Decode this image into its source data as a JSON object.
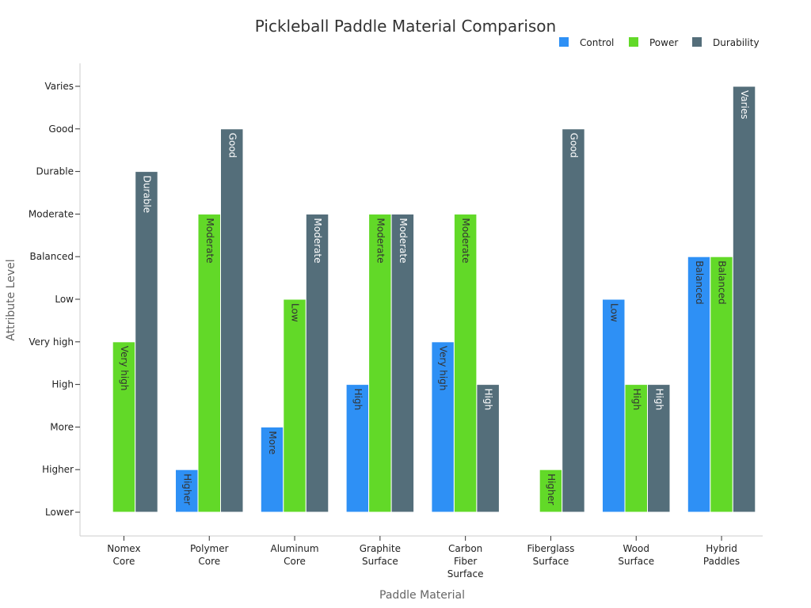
{
  "chart_data": {
    "type": "bar",
    "title": "Pickleball Paddle Material Comparison",
    "xlabel": "Paddle Material",
    "ylabel": "Attribute Level",
    "legend_position": "top-right",
    "grid": false,
    "y_categories": [
      "Lower",
      "Higher",
      "More",
      "High",
      "Very high",
      "Low",
      "Balanced",
      "Moderate",
      "Durable",
      "Good",
      "Varies"
    ],
    "categories": [
      [
        "Nomex",
        "Core"
      ],
      [
        "Polymer",
        "Core"
      ],
      [
        "Aluminum",
        "Core"
      ],
      [
        "Graphite",
        "Surface"
      ],
      [
        "Carbon",
        "Fiber",
        "Surface"
      ],
      [
        "Fiberglass",
        "Surface"
      ],
      [
        "Wood",
        "Surface"
      ],
      [
        "Hybrid",
        "Paddles"
      ]
    ],
    "series": [
      {
        "name": "Control",
        "color": "#2E90F5",
        "label_color": "#333333",
        "values": [
          "Lower",
          "Higher",
          "More",
          "High",
          "Very high",
          "Lower",
          "Low",
          "Balanced"
        ],
        "labels": [
          "",
          "Higher",
          "More",
          "High",
          "Very high",
          "",
          "Low",
          "Balanced"
        ]
      },
      {
        "name": "Power",
        "color": "#62D928",
        "label_color": "#333333",
        "values": [
          "Very high",
          "Moderate",
          "Low",
          "Moderate",
          "Moderate",
          "Higher",
          "High",
          "Balanced"
        ],
        "labels": [
          "Very high",
          "Moderate",
          "Low",
          "Moderate",
          "Moderate",
          "Higher",
          "High",
          "Balanced"
        ]
      },
      {
        "name": "Durability",
        "color": "#546E7A",
        "label_color": "#ffffff",
        "values": [
          "Durable",
          "Good",
          "Moderate",
          "Moderate",
          "High",
          "Good",
          "High",
          "Varies"
        ],
        "labels": [
          "Durable",
          "Good",
          "Moderate",
          "Moderate",
          "High",
          "Good",
          "High",
          "Varies"
        ]
      }
    ]
  }
}
